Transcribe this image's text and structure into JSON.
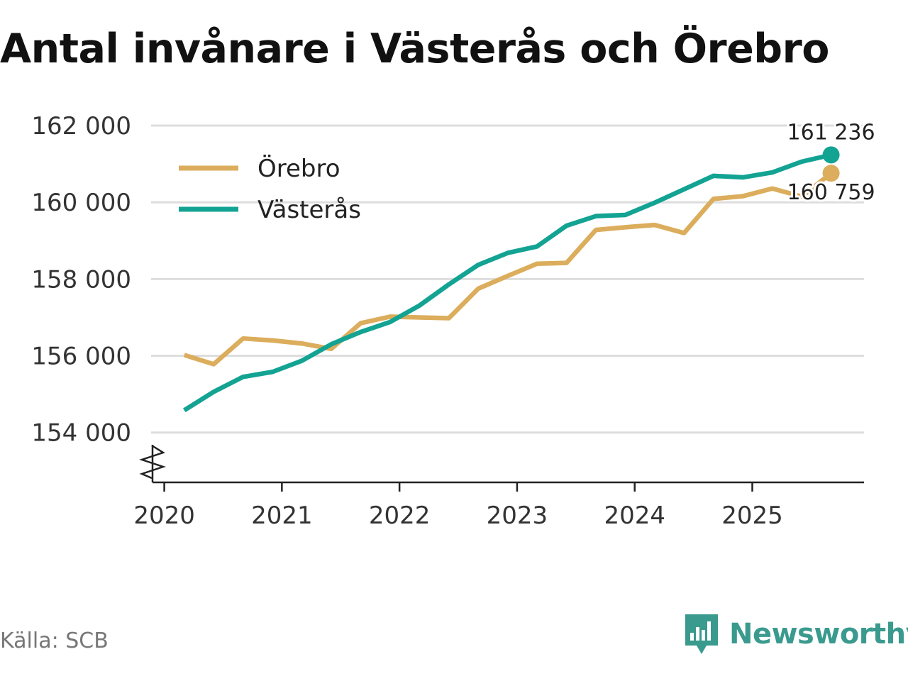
{
  "title": "Antal invånare i Västerås och Örebro",
  "source": "Källa: SCB",
  "brand": "Newsworthy",
  "colors": {
    "orebro": "#dbad5c",
    "vasteras": "#13a393",
    "brand": "#3a9a8e",
    "grid": "#dddddd",
    "axis": "#222222"
  },
  "chart_data": {
    "type": "line",
    "title": "Antal invånare i Västerås och Örebro",
    "xlabel": "",
    "ylabel": "",
    "x_tick_labels": [
      "2020",
      "2021",
      "2022",
      "2023",
      "2024",
      "2025"
    ],
    "x_tick_values": [
      2020,
      2021,
      2022,
      2023,
      2024,
      2025
    ],
    "y_tick_labels": [
      "154 000",
      "156 000",
      "158 000",
      "160 000",
      "162 000"
    ],
    "y_tick_values": [
      154000,
      156000,
      158000,
      160000,
      162000
    ],
    "ylim": [
      152700,
      162500
    ],
    "xlim": [
      2019.9,
      2025.95
    ],
    "grid": true,
    "axis_break": true,
    "legend_position": "top-left",
    "x": [
      2020.17,
      2020.42,
      2020.67,
      2020.92,
      2021.17,
      2021.42,
      2021.67,
      2021.92,
      2022.17,
      2022.42,
      2022.67,
      2022.92,
      2023.17,
      2023.42,
      2023.67,
      2023.92,
      2024.17,
      2024.42,
      2024.67,
      2024.92,
      2025.17,
      2025.42,
      2025.67
    ],
    "series": [
      {
        "name": "Örebro",
        "color": "#dbad5c",
        "values": [
          156020,
          155780,
          156450,
          156400,
          156320,
          156180,
          156850,
          157020,
          157000,
          156980,
          157750,
          158080,
          158400,
          158420,
          159280,
          159350,
          159410,
          159200,
          160090,
          160160,
          160360,
          160150,
          160759
        ],
        "end_label": "160 759"
      },
      {
        "name": "Västerås",
        "color": "#13a393",
        "values": [
          154580,
          155060,
          155450,
          155580,
          155870,
          156300,
          156620,
          156880,
          157310,
          157860,
          158370,
          158680,
          158850,
          159390,
          159640,
          159670,
          159990,
          160340,
          160690,
          160650,
          160780,
          161060,
          161236
        ],
        "end_label": "161 236"
      }
    ]
  }
}
